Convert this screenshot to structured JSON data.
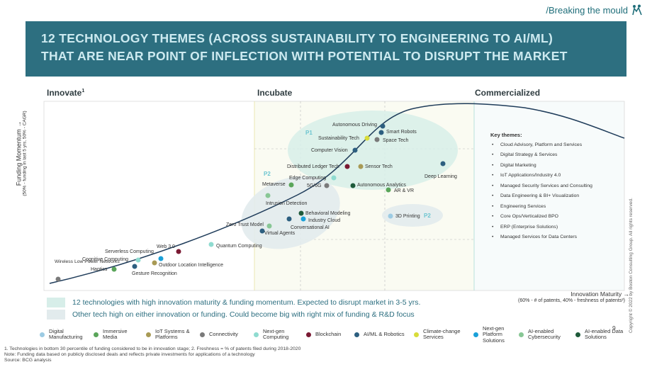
{
  "header": {
    "tagline": "/Breaking the mould",
    "tagline_icon": "people-climbing-icon",
    "title_line1": "12 TECHNOLOGY THEMES (ACROSS SUSTAINABILITY TO ENGINEERING TO AI/ML)",
    "title_line2": "THAT ARE NEAR POINT OF INFLECTION WITH POTENTIAL TO DISRUPT THE MARKET",
    "banner_color": "#2d6f80"
  },
  "stages": {
    "innovate": "Innovate",
    "innovate_sup": "1",
    "incubate": "Incubate",
    "commercialized": "Commercialized"
  },
  "axes": {
    "y_label": "Funding Momentum →",
    "y_sub": "(50% - funding in last 5 yrs, 50% - CAGR)",
    "x_label": "Innovation Maturity →",
    "x_sub": "(60% - # of patents, 40% - freshness of patents²)"
  },
  "priority_labels": {
    "p1": "P1",
    "p2a": "P2",
    "p2b": "P2"
  },
  "technologies": [
    {
      "name": "Wireless Low Power Networks",
      "category": "Connectivity"
    },
    {
      "name": "Haptics",
      "category": "Immersive Media"
    },
    {
      "name": "Gesture Recognition",
      "category": "AI/ML & Robotics"
    },
    {
      "name": "Cognitive Computing",
      "category": "Next-gen Computing"
    },
    {
      "name": "Serverless Computing",
      "category": "Next-gen Computing"
    },
    {
      "name": "Outdoor Location Intelligence",
      "category": "IoT Systems & Platforms"
    },
    {
      "name": "Web 3.0",
      "category": "Blockchain"
    },
    {
      "name": "Quantum Computing",
      "category": "Next-gen Computing"
    },
    {
      "name": "Zero Trust Model",
      "category": "AI-enabled Cybersecurity"
    },
    {
      "name": "Virtual Agents",
      "category": "AI/ML & Robotics"
    },
    {
      "name": "Conversational AI",
      "category": "AI/ML & Robotics"
    },
    {
      "name": "Behavioral Modeling",
      "category": "AI-enabled Data Solutions"
    },
    {
      "name": "Industry Cloud",
      "category": "Digital Manufacturing"
    },
    {
      "name": "Intrusion Detection",
      "category": "AI-enabled Cybersecurity"
    },
    {
      "name": "Metaverse",
      "category": "Immersive Media"
    },
    {
      "name": "Edge Computing",
      "category": "Next-gen Computing"
    },
    {
      "name": "5G/6G",
      "category": "Connectivity"
    },
    {
      "name": "Distributed Ledger Tech",
      "category": "Blockchain"
    },
    {
      "name": "Sensor Tech",
      "category": "IoT Systems & Platforms"
    },
    {
      "name": "Autonomous Analytics",
      "category": "AI-enabled Data Solutions"
    },
    {
      "name": "AR & VR",
      "category": "Immersive Media"
    },
    {
      "name": "Computer Vision",
      "category": "AI/ML & Robotics"
    },
    {
      "name": "Sustainability Tech",
      "category": "Climate-change Services"
    },
    {
      "name": "Autonomous Driving",
      "category": "AI/ML & Robotics"
    },
    {
      "name": "Smart Robots",
      "category": "AI/ML & Robotics"
    },
    {
      "name": "Space Tech",
      "category": "Connectivity"
    },
    {
      "name": "Deep Learning",
      "category": "AI/ML & Robotics"
    },
    {
      "name": "3D Printing",
      "category": "Digital Manufacturing"
    }
  ],
  "key_themes": {
    "title": "Key themes:",
    "items": [
      "Cloud Advisory, Platform and Services",
      "Digital Strategy & Services",
      "Digital Marketing",
      "IoT Applications/Industry 4.0",
      "Managed Security Services and Consulting",
      "Data Engineering & BI+ Visualization",
      "Engineering Services",
      "Core Ops/Verticalized BPO",
      "ERP (Enterprise Solutions)",
      "Managed Services for Data Centers"
    ]
  },
  "notes": {
    "p1_text": "12 technologies with high innovation maturity & funding momentum. Expected to disrupt market in 3-5 yrs.",
    "p2_text": "Other tech high on either innovation or funding. Could become big with right mix of funding & R&D focus",
    "p1_color": "#d7eee9",
    "p2_color": "#e2ebed"
  },
  "legend": [
    {
      "label": "Digital Manufacturing",
      "color": "#9ccbe3"
    },
    {
      "label": "Immersive Media",
      "color": "#5aa55a"
    },
    {
      "label": "IoT Systems & Platforms",
      "color": "#a89a55"
    },
    {
      "label": "Connectivity",
      "color": "#7a7a7a"
    },
    {
      "label": "Next-gen Computing",
      "color": "#8fdbd0"
    },
    {
      "label": "Blockchain",
      "color": "#7a1a33"
    },
    {
      "label": "AI/ML & Robotics",
      "color": "#2d5f80"
    },
    {
      "label": "Climate-change Services",
      "color": "#d8dc3a"
    },
    {
      "label": "Next-gen Platform Solutions",
      "color": "#1aa0d8"
    },
    {
      "label": "AI-enabled Cybersecurity",
      "color": "#88c795"
    },
    {
      "label": "AI-enabled Data Solutions",
      "color": "#1e5a3a"
    }
  ],
  "footnotes": {
    "line1": "1. Technologies in bottom 30 percentile of funding considered to be in innovation stage; 2. Freshness = % of patents filed during 2018-2020",
    "line2": "Note: Funding data based on publicly disclosed deals and reflects private investments for applications of a technology",
    "line3": "Source: BCG analysis"
  },
  "page_number": "9",
  "copyright": "Copyright © 2022 by Boston Consulting Group. All rights reserved."
}
